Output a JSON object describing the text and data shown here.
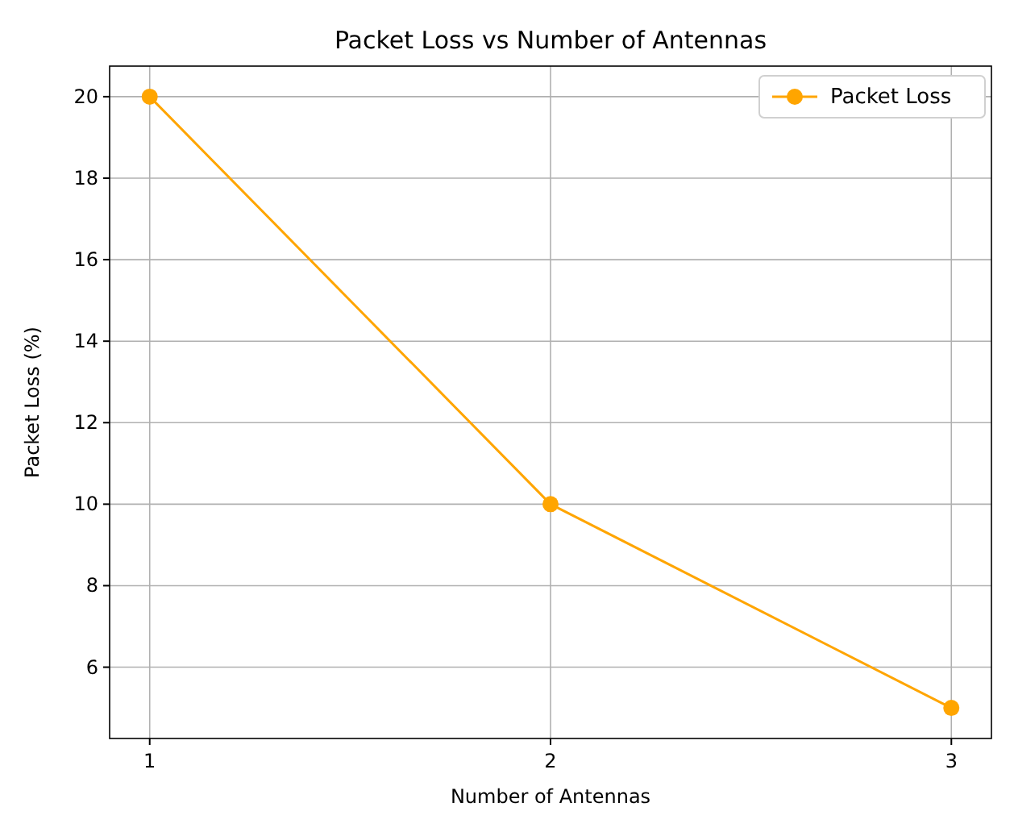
{
  "chart_data": {
    "type": "line",
    "title": "Packet Loss vs Number of Antennas",
    "xlabel": "Number of Antennas",
    "ylabel": "Packet Loss (%)",
    "x": [
      1,
      2,
      3
    ],
    "series": [
      {
        "name": "Packet Loss",
        "color": "#ffa500",
        "values": [
          20,
          10,
          5
        ]
      }
    ],
    "xlim": [
      0.9,
      3.1
    ],
    "xticks": [
      1,
      2,
      3
    ],
    "ylim": [
      4.25,
      20.75
    ],
    "yticks": [
      6,
      8,
      10,
      12,
      14,
      16,
      18,
      20
    ],
    "grid": true,
    "legend": "top right",
    "marker": "circle",
    "line_style": "solid"
  }
}
